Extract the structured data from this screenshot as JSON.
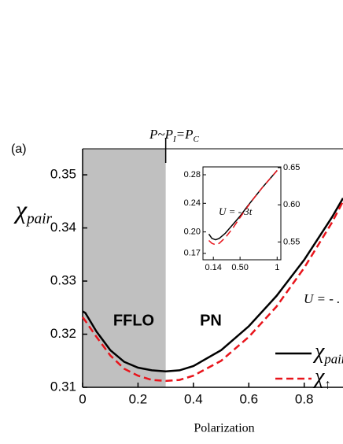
{
  "chart_data": {
    "type": "line",
    "panel_label": "(a)",
    "phase_label": {
      "parts": [
        "P~P",
        "I",
        "=P",
        "C"
      ]
    },
    "ylabel": {
      "symbol": "χ",
      "sub": "pair"
    },
    "xlabel": "Polarization",
    "regions": [
      "FFLO",
      "PN"
    ],
    "shade": [
      0,
      0.3
    ],
    "annotation": "U = - .",
    "xlim": [
      0,
      0.94
    ],
    "xticks": [
      0,
      0.2,
      0.4,
      0.6,
      0.8
    ],
    "ylim": [
      0.31,
      0.3549
    ],
    "yticks": [
      0.31,
      0.32,
      0.33,
      0.34,
      0.35
    ],
    "x": [
      0,
      0.01,
      0.05,
      0.1,
      0.15,
      0.2,
      0.25,
      0.3,
      0.35,
      0.4,
      0.5,
      0.6,
      0.7,
      0.8,
      0.9,
      0.94
    ],
    "series": [
      {
        "name": {
          "symbol": "χ",
          "sub": "pair"
        },
        "color": "#000000",
        "dash": false,
        "values": [
          0.3243,
          0.324,
          0.3205,
          0.317,
          0.3148,
          0.3137,
          0.3132,
          0.313,
          0.3132,
          0.314,
          0.317,
          0.3215,
          0.3272,
          0.334,
          0.342,
          0.3456
        ]
      },
      {
        "name": {
          "symbol": "χ",
          "sub": "↑"
        },
        "color": "#e8141b",
        "dash": true,
        "values": [
          0.3232,
          0.3225,
          0.3195,
          0.316,
          0.3135,
          0.3122,
          0.3114,
          0.3112,
          0.3114,
          0.3122,
          0.315,
          0.3195,
          0.3252,
          0.3325,
          0.341,
          0.345
        ]
      }
    ],
    "inset": {
      "annotation": "U = - 3t",
      "xlim": [
        0,
        1.05
      ],
      "xticks": [
        0.14,
        {
          "value": 0.5,
          "label": "0.50"
        },
        1
      ],
      "ylim": [
        0.161,
        0.291
      ],
      "yticks": [
        0.17,
        {
          "value": 0.2,
          "label": "0.20"
        },
        0.24,
        0.28
      ],
      "y2lim": [
        0.526,
        0.651
      ],
      "y2ticks": [
        0.55,
        {
          "value": 0.6,
          "label": "0.60"
        },
        0.65
      ],
      "x": [
        0.08,
        0.12,
        0.17,
        0.22,
        0.3,
        0.4,
        0.5,
        0.6,
        0.7,
        0.8,
        0.9,
        1
      ],
      "series": [
        {
          "color": "#000000",
          "dash": false,
          "values": [
            0.197,
            0.191,
            0.189,
            0.191,
            0.198,
            0.21,
            0.222,
            0.236,
            0.249,
            0.262,
            0.274,
            0.286
          ]
        },
        {
          "color": "#e8141b",
          "dash": true,
          "values": [
            0.188,
            0.184,
            0.182,
            0.184,
            0.192,
            0.205,
            0.22,
            0.235,
            0.249,
            0.262,
            0.274,
            0.286
          ]
        }
      ]
    }
  }
}
